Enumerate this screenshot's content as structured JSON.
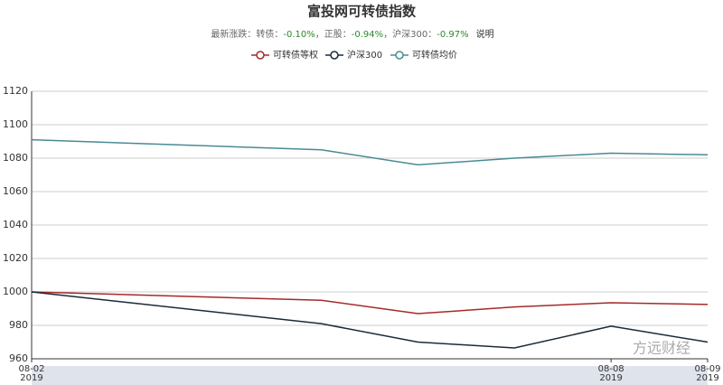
{
  "chart_data": {
    "type": "line",
    "title": "富投网可转债指数",
    "subtitle": {
      "prefix": "最新涨跌：转债：",
      "bond": "-0.10%",
      "sep1": "，正股：",
      "stock": "-0.94%",
      "sep2": "，沪深300：",
      "index": "-0.97%",
      "note": "说明"
    },
    "x": [
      "2019-08-02",
      "2019-08-05",
      "2019-08-06",
      "2019-08-07",
      "2019-08-08",
      "2019-08-09"
    ],
    "xticks": [
      {
        "value": "2019-08-02",
        "label": [
          "08-02",
          "2019"
        ]
      },
      {
        "value": "2019-08-08",
        "label": [
          "08-08",
          "2019"
        ]
      },
      {
        "value": "2019-08-09",
        "label": [
          "08-09",
          "2019"
        ]
      }
    ],
    "series": [
      {
        "name": "可转债等权",
        "color": "#a52a2a",
        "values": [
          1000,
          995,
          987,
          991,
          993.5,
          992.5
        ]
      },
      {
        "name": "沪深300",
        "color": "#1b2a38",
        "values": [
          1000,
          981,
          970,
          966.5,
          979.5,
          970
        ]
      },
      {
        "name": "可转债均价",
        "color": "#4a8a94",
        "values": [
          1091,
          1085,
          1076,
          1080,
          1083,
          1082
        ]
      }
    ],
    "ylim": [
      960,
      1120
    ],
    "yticks": [
      960,
      980,
      1000,
      1020,
      1040,
      1060,
      1080,
      1100,
      1120
    ],
    "grid": true,
    "watermark": "方远财经"
  }
}
